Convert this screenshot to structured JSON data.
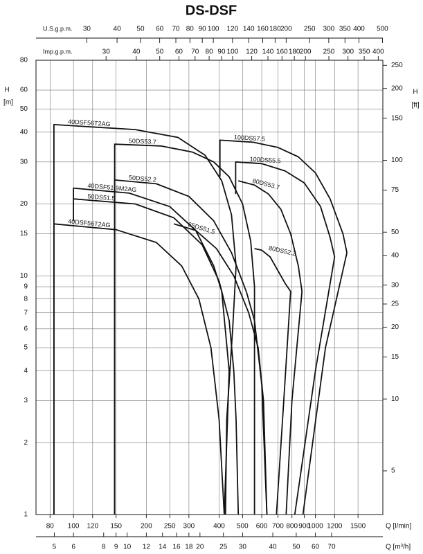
{
  "chart_data": {
    "type": "line",
    "title": "DS-DSF",
    "xlabel": "Q [l/min]",
    "ylabel": "H",
    "ylabel_unit": "[m]",
    "y2label": "H",
    "y2label_unit": "[ft]",
    "log_x": true,
    "log_y": true,
    "grid": true,
    "xlim": [
      70,
      1900
    ],
    "xticks": [
      80,
      100,
      120,
      150,
      200,
      250,
      300,
      400,
      500,
      600,
      700,
      800,
      900,
      1000,
      1200,
      1500
    ],
    "ylim": [
      1,
      80
    ],
    "yticks": [
      1,
      2,
      3,
      4,
      5,
      6,
      7,
      8,
      9,
      10,
      15,
      20,
      30,
      40,
      50,
      60,
      80
    ],
    "y2lim": [
      3.281,
      262.5
    ],
    "y2ticks": [
      5,
      10,
      15,
      20,
      25,
      30,
      40,
      50,
      75,
      100,
      150,
      200,
      250
    ],
    "secondary_x_axes": [
      {
        "label": "U.S.g.p.m.",
        "position": "top",
        "lim": [
          18.49,
          501.98
        ],
        "ticks": [
          30,
          40,
          50,
          60,
          70,
          80,
          90,
          100,
          120,
          140,
          160,
          180,
          200,
          250,
          300,
          350,
          400,
          500
        ]
      },
      {
        "label": "Imp.g.p.m.",
        "position": "top",
        "lim": [
          15.4,
          417.9
        ],
        "ticks": [
          30,
          40,
          50,
          60,
          70,
          80,
          90,
          100,
          120,
          140,
          160,
          180,
          200,
          250,
          300,
          350,
          400
        ]
      },
      {
        "label": "Q [m³/h]",
        "position": "bottom",
        "lim": [
          4.2,
          114
        ],
        "ticks": [
          5,
          6,
          8,
          9,
          10,
          12,
          14,
          16,
          18,
          20,
          25,
          30,
          40,
          50,
          60,
          70
        ]
      }
    ],
    "series": [
      {
        "name": "40DSF56T2AG",
        "color": "#111111",
        "x": [
          83,
          83,
          180,
          270,
          350,
          410,
          450,
          470,
          455,
          430,
          425
        ],
        "values": [
          1,
          43,
          41,
          38,
          32,
          25,
          18,
          11,
          6,
          2.5,
          1
        ]
      },
      {
        "name": "50DS53.7",
        "color": "#111111",
        "x": [
          148,
          148,
          230,
          310,
          380,
          440,
          500,
          540,
          560,
          560
        ],
        "values": [
          1,
          35.6,
          35,
          33,
          30,
          26,
          20,
          14,
          9,
          1
        ]
      },
      {
        "name": "100DS57.5",
        "color": "#111111",
        "x": [
          403,
          403,
          550,
          700,
          850,
          1000,
          1150,
          1300,
          1350,
          1100,
          888
        ],
        "values": [
          26,
          37,
          36.3,
          34.5,
          31.5,
          27,
          21,
          15,
          12.5,
          5,
          1
        ]
      },
      {
        "name": "100DS55.5",
        "color": "#111111",
        "x": [
          468,
          468,
          600,
          750,
          900,
          1050,
          1150,
          1200,
          1000,
          822
        ],
        "values": [
          22,
          30,
          29.5,
          27.5,
          24.5,
          19.5,
          14.5,
          12,
          4,
          1
        ]
      },
      {
        "name": "50DS52.2",
        "color": "#111111",
        "x": [
          148,
          148,
          220,
          300,
          380,
          450,
          520,
          560,
          600,
          630
        ],
        "values": [
          1,
          25.2,
          24.3,
          21.5,
          17,
          12.5,
          8.5,
          6.5,
          3.5,
          1
        ]
      },
      {
        "name": "40DSF51.9M2AG",
        "color": "#111111",
        "x": [
          100,
          100,
          170,
          250,
          320,
          380,
          410,
          440,
          430,
          420
        ],
        "values": [
          17,
          23.3,
          22.2,
          19.5,
          15.5,
          11,
          8.6,
          4,
          2,
          1
        ]
      },
      {
        "name": "80DS53.7",
        "color": "#111111",
        "x": [
          480,
          560,
          640,
          720,
          790,
          850,
          880,
          800,
          757
        ],
        "values": [
          25,
          24,
          22,
          19,
          15,
          11,
          8.6,
          3,
          1
        ]
      },
      {
        "name": "50DS51.5",
        "color": "#111111",
        "x": [
          100,
          180,
          260,
          340,
          400,
          440,
          460,
          470,
          480
        ],
        "values": [
          21,
          20,
          17.5,
          13.5,
          9.5,
          6.5,
          4,
          2.5,
          1
        ]
      },
      {
        "name": "65DS51.5",
        "color": "#111111",
        "x": [
          260,
          320,
          390,
          460,
          530,
          580,
          610,
          630
        ],
        "values": [
          16.5,
          15.5,
          13,
          10,
          7,
          5,
          3,
          1
        ]
      },
      {
        "name": "40DSF56T2AG",
        "color": "#111111",
        "x": [
          83,
          83,
          150,
          220,
          280,
          330,
          370,
          400,
          420
        ],
        "values": [
          1,
          16.5,
          15.6,
          13.8,
          11,
          8,
          5,
          2.5,
          1
        ]
      },
      {
        "name": "80DS52.2",
        "color": "#111111",
        "x": [
          560,
          600,
          650,
          700,
          750,
          790,
          740,
          690
        ],
        "values": [
          13,
          12.8,
          12,
          10.5,
          9.3,
          8.6,
          3,
          1
        ]
      }
    ]
  }
}
